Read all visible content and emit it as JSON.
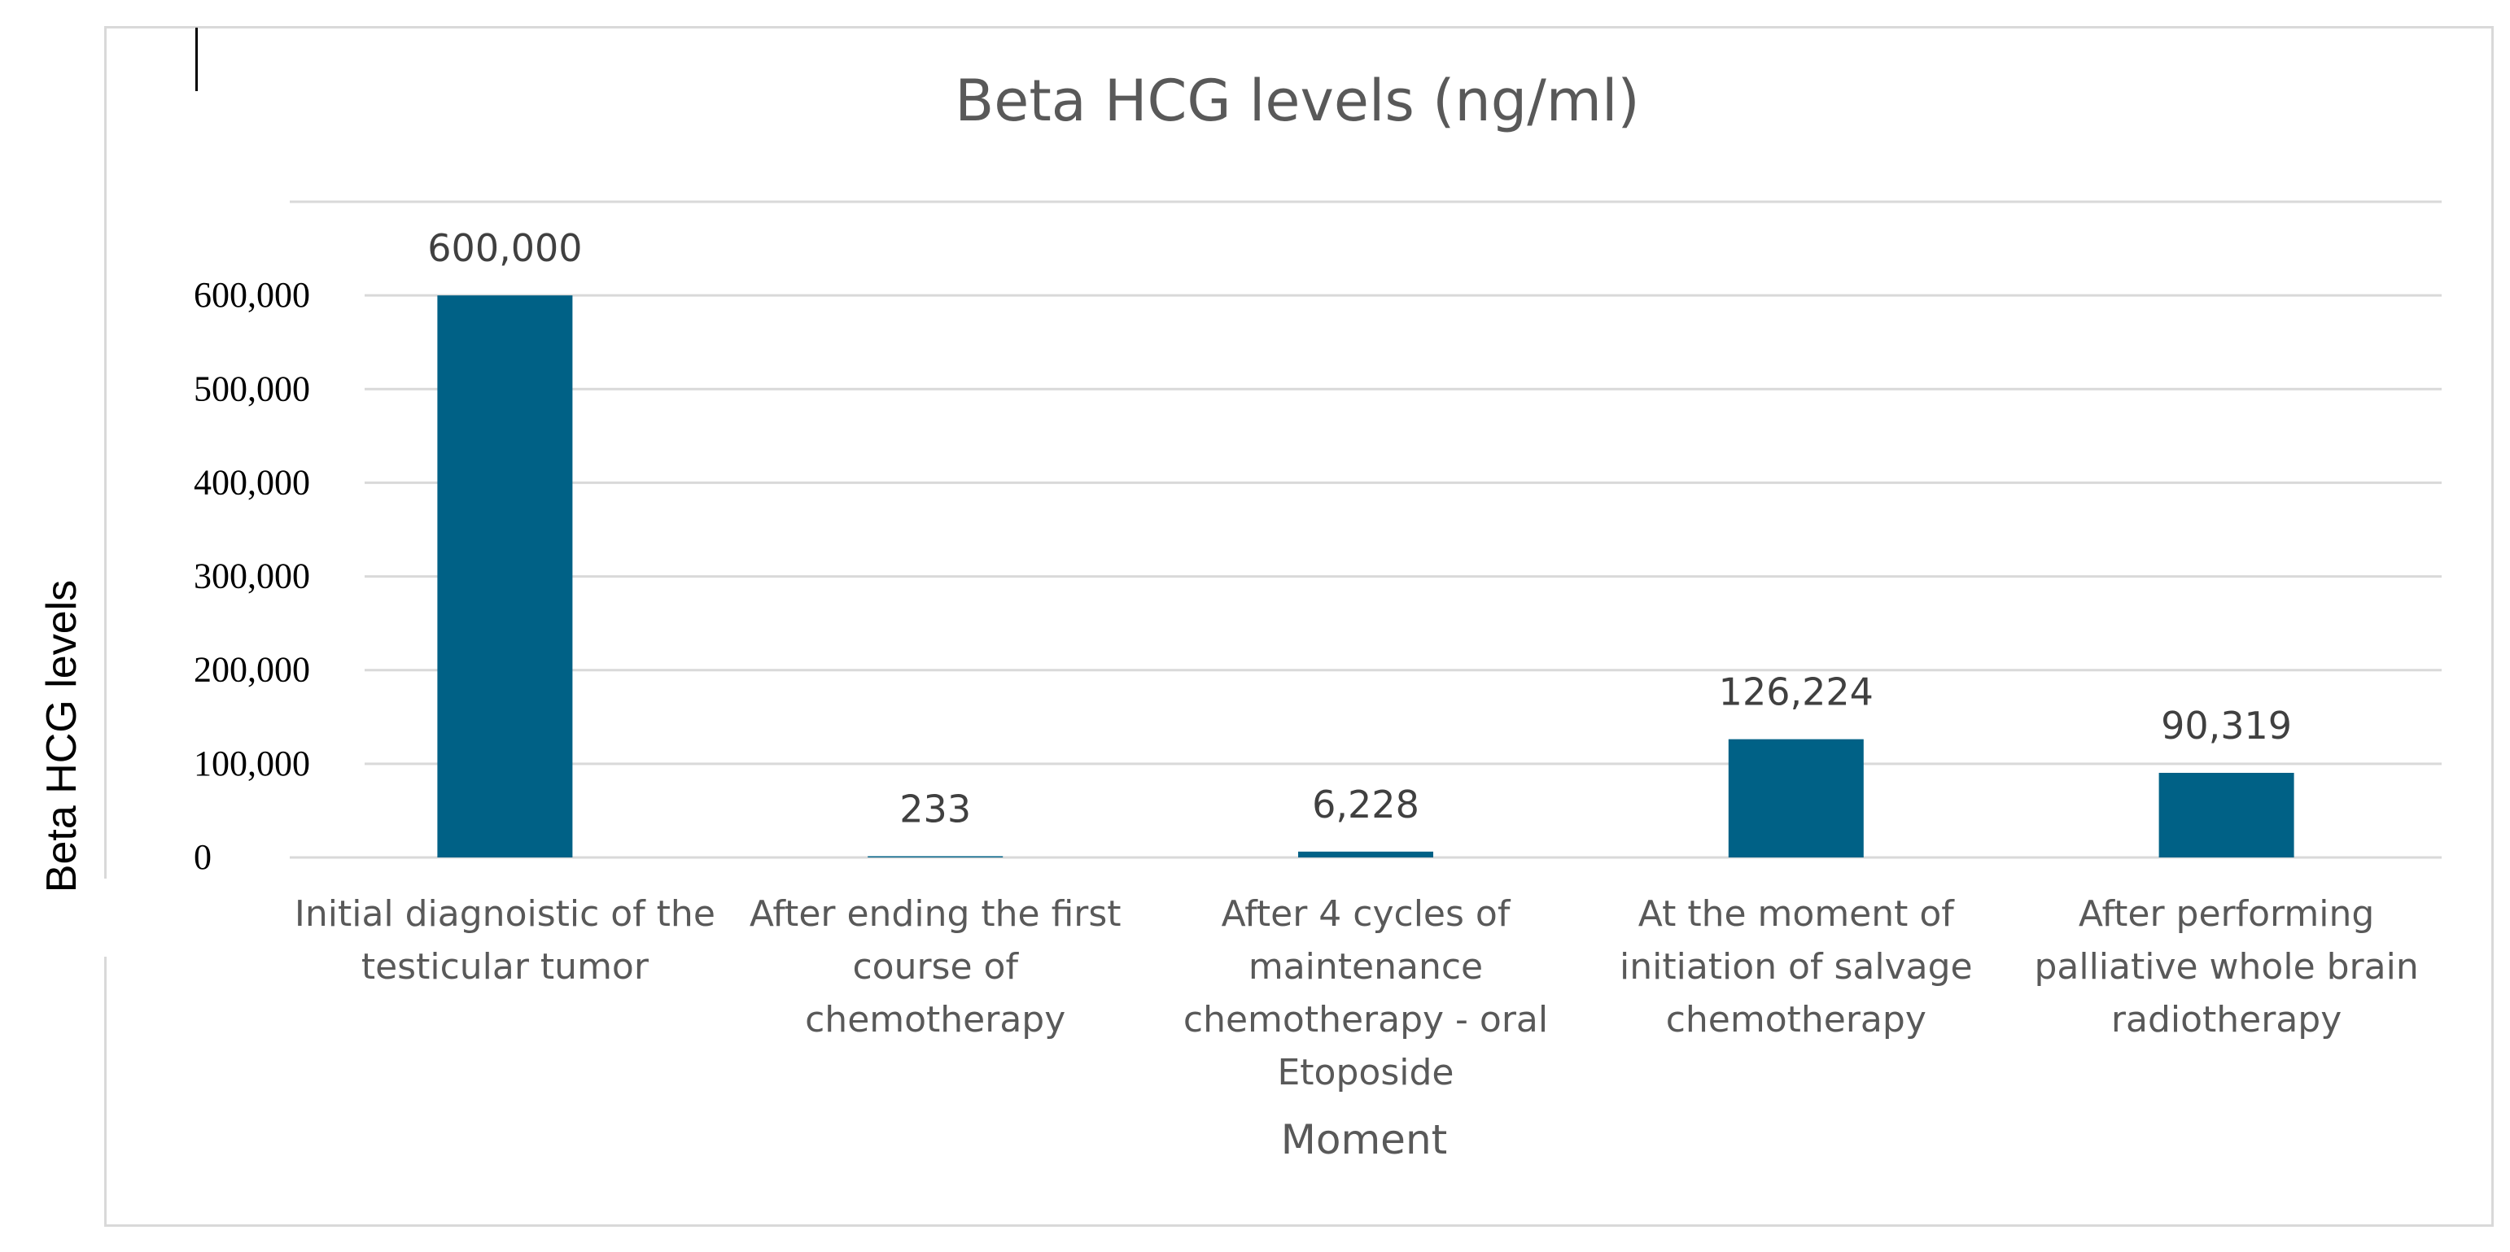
{
  "chart_data": {
    "type": "bar",
    "title": "Beta HCG levels (ng/ml)",
    "xlabel": "Moment",
    "ylabel": "Beta HCG levels",
    "categories": [
      [
        "Initial diagnoistic of the",
        "testicular tumor"
      ],
      [
        "After ending the first",
        "course of",
        "chemotherapy"
      ],
      [
        "After 4 cycles of",
        "maintenance",
        "chemotherapy - oral",
        "Etoposide"
      ],
      [
        "At the moment of",
        "initiation of salvage",
        "chemotherapy"
      ],
      [
        "After performing",
        "palliative whole brain",
        "radiotherapy"
      ]
    ],
    "values": [
      600000,
      233,
      6228,
      126224,
      90319
    ],
    "data_labels": [
      "600,000",
      "233",
      "6,228",
      "126,224",
      "90,319"
    ],
    "yticks": [
      0,
      100000,
      200000,
      300000,
      400000,
      500000,
      600000
    ],
    "ytick_labels": [
      "0",
      "100,000",
      "200,000",
      "300,000",
      "400,000",
      "500,000",
      "600,000"
    ],
    "ylim": [
      0,
      700000
    ],
    "grid": true,
    "legend": "none",
    "colors": {
      "bar": "#006186",
      "grid": "#d9d9d9"
    }
  }
}
